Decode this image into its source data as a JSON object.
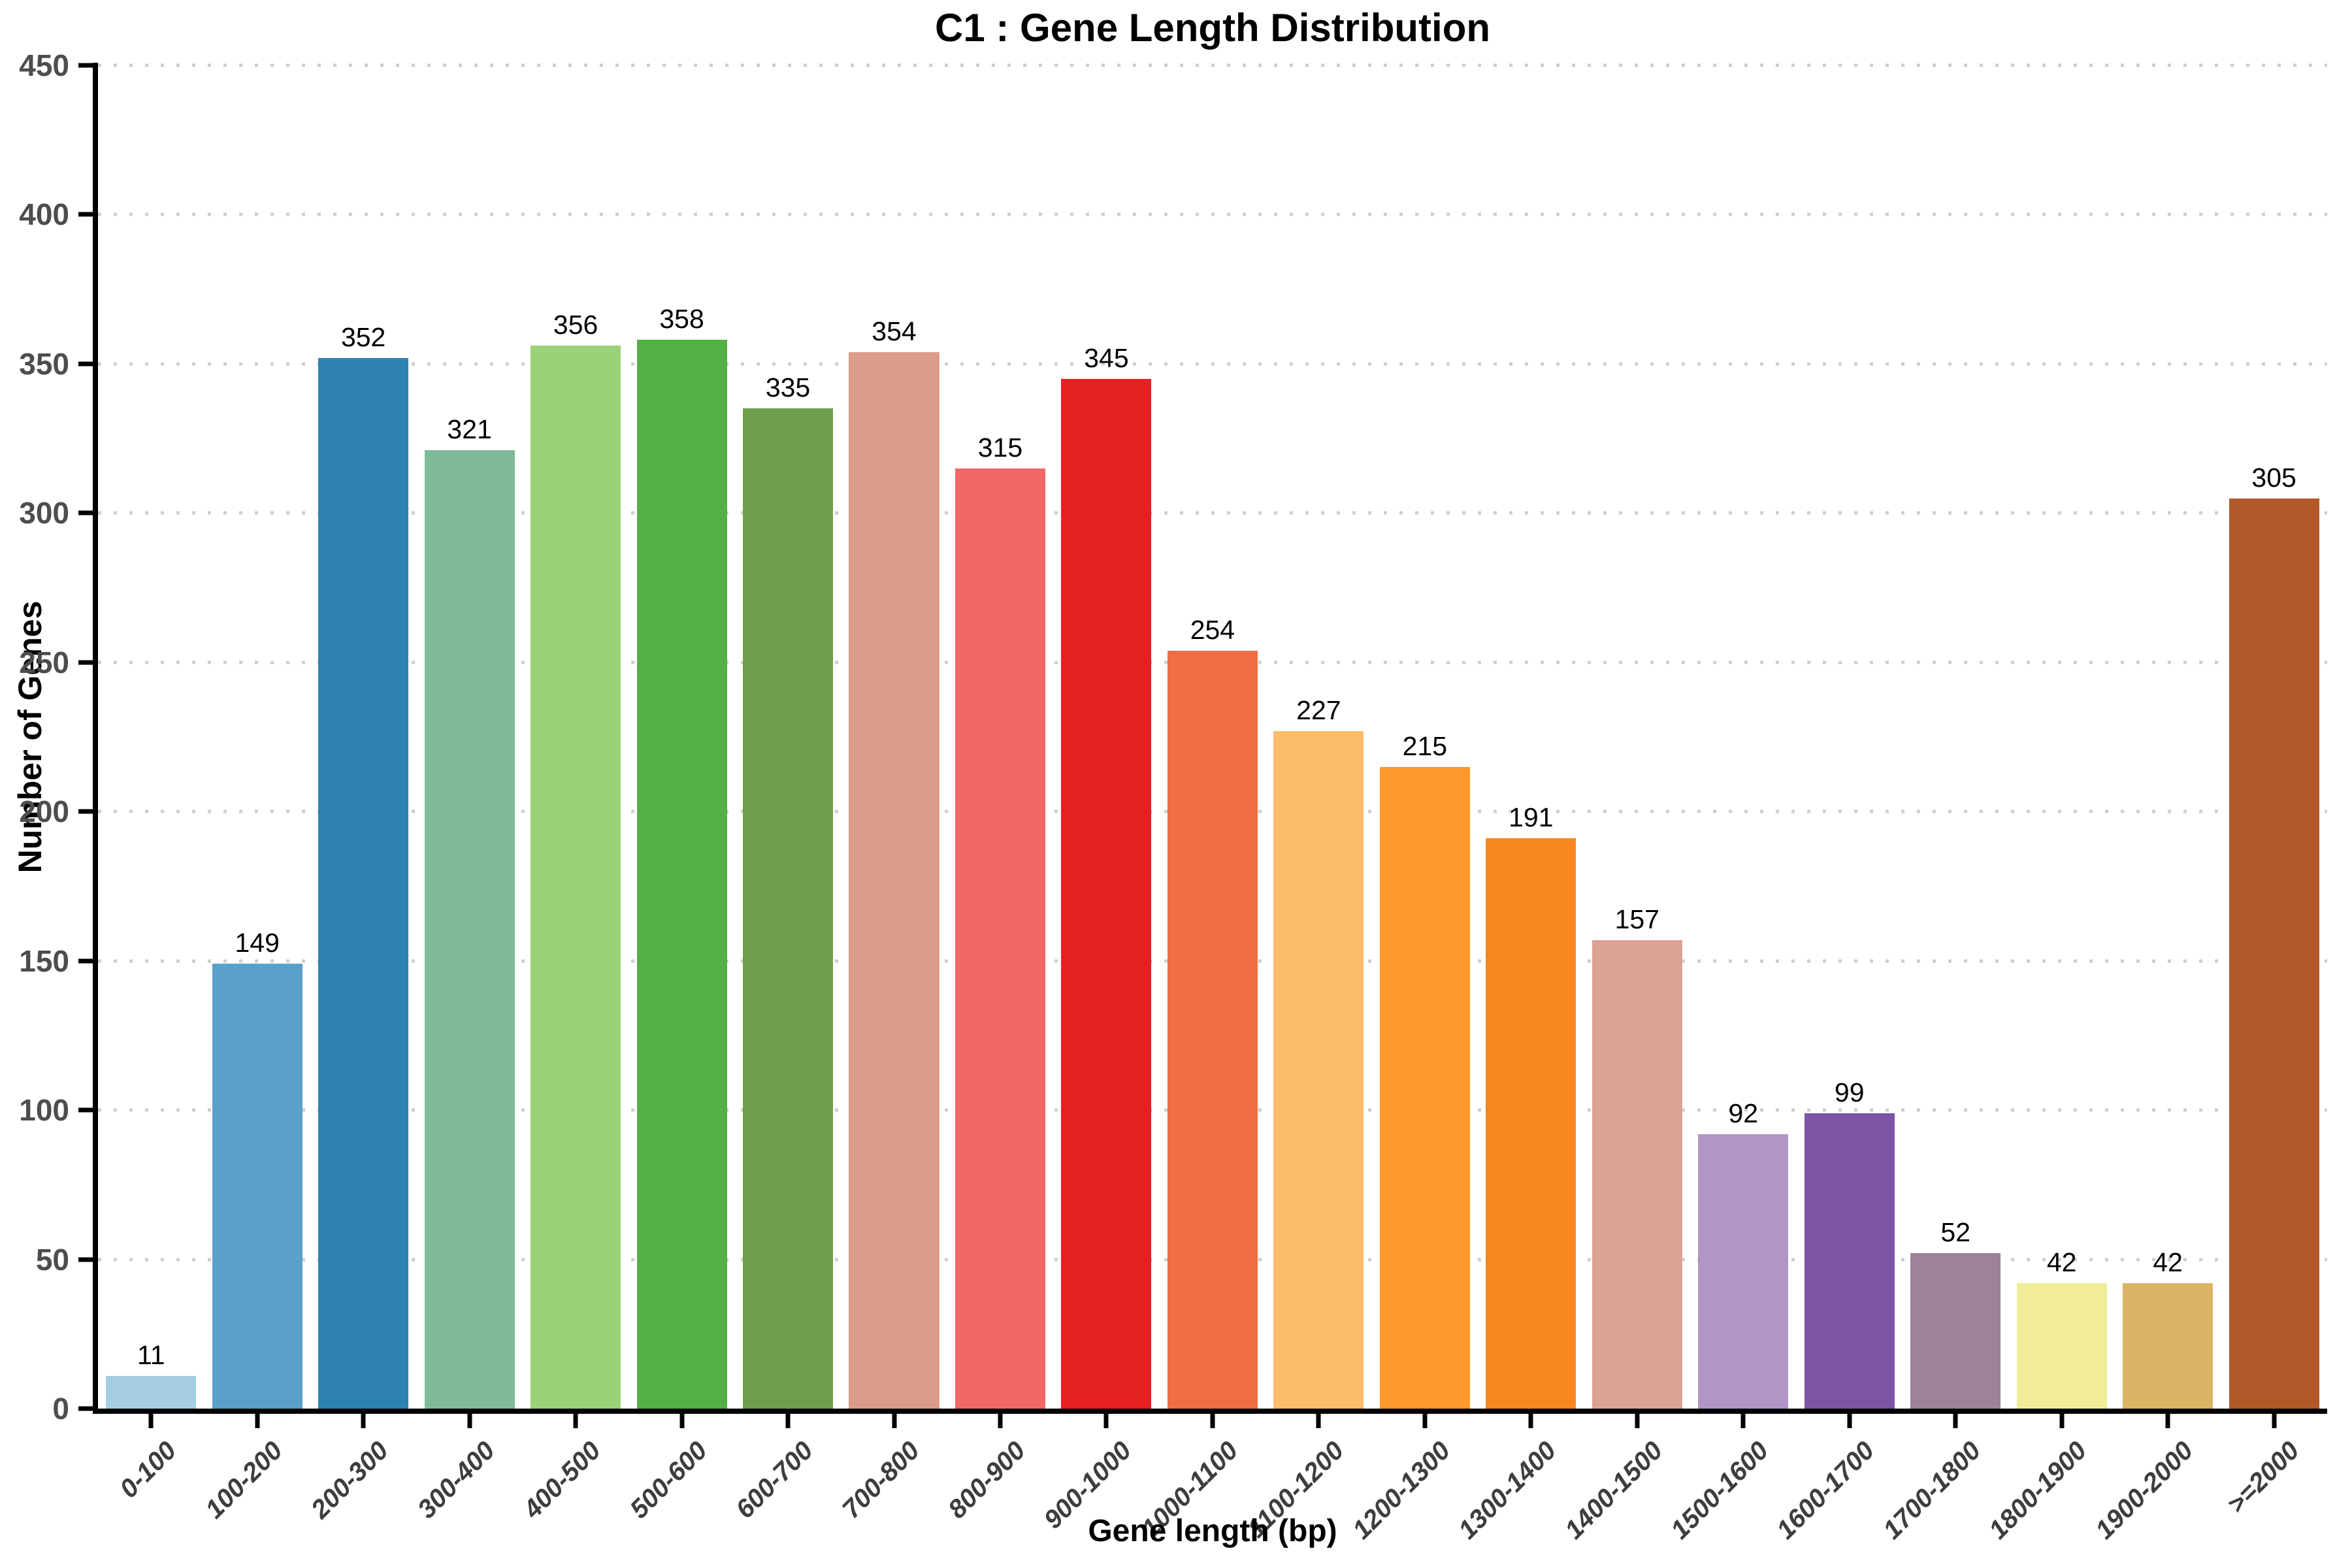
{
  "chart_data": {
    "type": "bar",
    "title": "C1 : Gene Length Distribution",
    "xlabel": "Gene length (bp)",
    "ylabel": "Number of Genes",
    "categories": [
      "0-100",
      "100-200",
      "200-300",
      "300-400",
      "400-500",
      "500-600",
      "600-700",
      "700-800",
      "800-900",
      "900-1000",
      "1000-1100",
      "1100-1200",
      "1200-1300",
      "1300-1400",
      "1400-1500",
      "1500-1600",
      "1600-1700",
      "1700-1800",
      "1800-1900",
      "1900-2000",
      ">=2000"
    ],
    "values": [
      11,
      149,
      352,
      321,
      356,
      358,
      335,
      354,
      315,
      345,
      254,
      227,
      215,
      191,
      157,
      92,
      99,
      52,
      42,
      42,
      305
    ],
    "bar_colors": [
      "#a6cee3",
      "#5c9fc9",
      "#2e82b0",
      "#7fbb99",
      "#99d277",
      "#53b044",
      "#6f9e4d",
      "#dd9b89",
      "#f16767",
      "#e42022",
      "#f06d46",
      "#fdbc6a",
      "#fe992c",
      "#f78720",
      "#daa396",
      "#b295c7",
      "#7d54a6",
      "#9e819a",
      "#f0ec99",
      "#dcb466",
      "#b15928"
    ],
    "ylim": [
      0,
      450
    ],
    "yticks": [
      0,
      50,
      100,
      150,
      200,
      250,
      300,
      350,
      400,
      450
    ],
    "grid": "horizontal-dotted",
    "legend_position": "none",
    "colors": {
      "axis": "#000000",
      "gridline": "#cecece",
      "y_tick_label": "#4d4d4d",
      "x_tick_label": "#3d3d3d",
      "value_label": "#000000",
      "background": "#ffffff"
    }
  }
}
